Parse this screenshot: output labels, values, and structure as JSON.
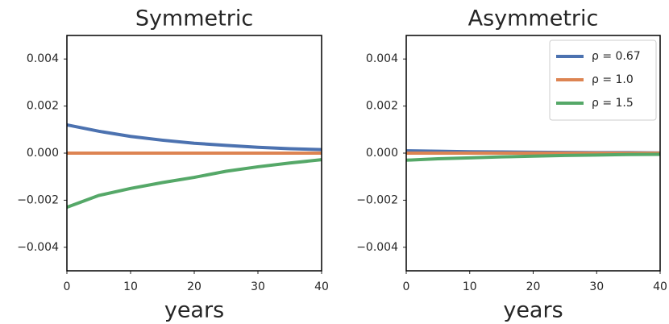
{
  "chart_data": [
    {
      "type": "line",
      "title": "Symmetric",
      "x_label": "years",
      "x": [
        0,
        5,
        10,
        15,
        20,
        25,
        30,
        35,
        40
      ],
      "series": [
        {
          "color": "#4c72b0",
          "values": [
            0.0012,
            0.00093,
            0.00071,
            0.00055,
            0.00042,
            0.00033,
            0.00025,
            0.00019,
            0.00015
          ]
        },
        {
          "color": "#dd8452",
          "values": [
            0,
            0,
            0,
            0,
            0,
            0,
            0,
            0,
            0
          ]
        },
        {
          "color": "#55a868",
          "values": [
            -0.0023,
            -0.0018,
            -0.0015,
            -0.00125,
            -0.00103,
            -0.00077,
            -0.00058,
            -0.00042,
            -0.00028
          ]
        }
      ],
      "xlim": [
        0,
        40
      ],
      "xticks": [
        0,
        10,
        20,
        30,
        40
      ],
      "ylim": [
        -0.005,
        0.005
      ],
      "yticks": [
        {
          "value": -0.004,
          "label": "−0.004"
        },
        {
          "value": -0.002,
          "label": "−0.002"
        },
        {
          "value": 0,
          "label": "0.000"
        },
        {
          "value": 0.002,
          "label": "0.002"
        },
        {
          "value": 0.004,
          "label": "0.004"
        }
      ]
    },
    {
      "type": "line",
      "title": "Asymmetric",
      "x_label": "years",
      "x": [
        0,
        5,
        10,
        15,
        20,
        25,
        30,
        35,
        40
      ],
      "series": [
        {
          "name": "ρ = 0.67",
          "color": "#4c72b0",
          "values": [
            0.0001,
            8e-05,
            6e-05,
            5e-05,
            4e-05,
            3e-05,
            2e-05,
            2e-05,
            1e-05
          ]
        },
        {
          "name": "ρ = 1.0",
          "color": "#dd8452",
          "values": [
            0,
            0,
            0,
            0,
            0,
            0,
            0,
            0,
            0
          ]
        },
        {
          "name": "ρ = 1.5",
          "color": "#55a868",
          "values": [
            -0.0003,
            -0.00024,
            -0.0002,
            -0.00016,
            -0.00013,
            -0.0001,
            -8e-05,
            -6e-05,
            -5e-05
          ]
        }
      ],
      "xlim": [
        0,
        40
      ],
      "xticks": [
        0,
        10,
        20,
        30,
        40
      ],
      "ylim": [
        -0.005,
        0.005
      ],
      "yticks": [
        {
          "value": -0.004,
          "label": "−0.004"
        },
        {
          "value": -0.002,
          "label": "−0.002"
        },
        {
          "value": 0,
          "label": "0.000"
        },
        {
          "value": 0.002,
          "label": "0.002"
        },
        {
          "value": 0.004,
          "label": "0.004"
        }
      ],
      "legend": "upper right"
    }
  ]
}
